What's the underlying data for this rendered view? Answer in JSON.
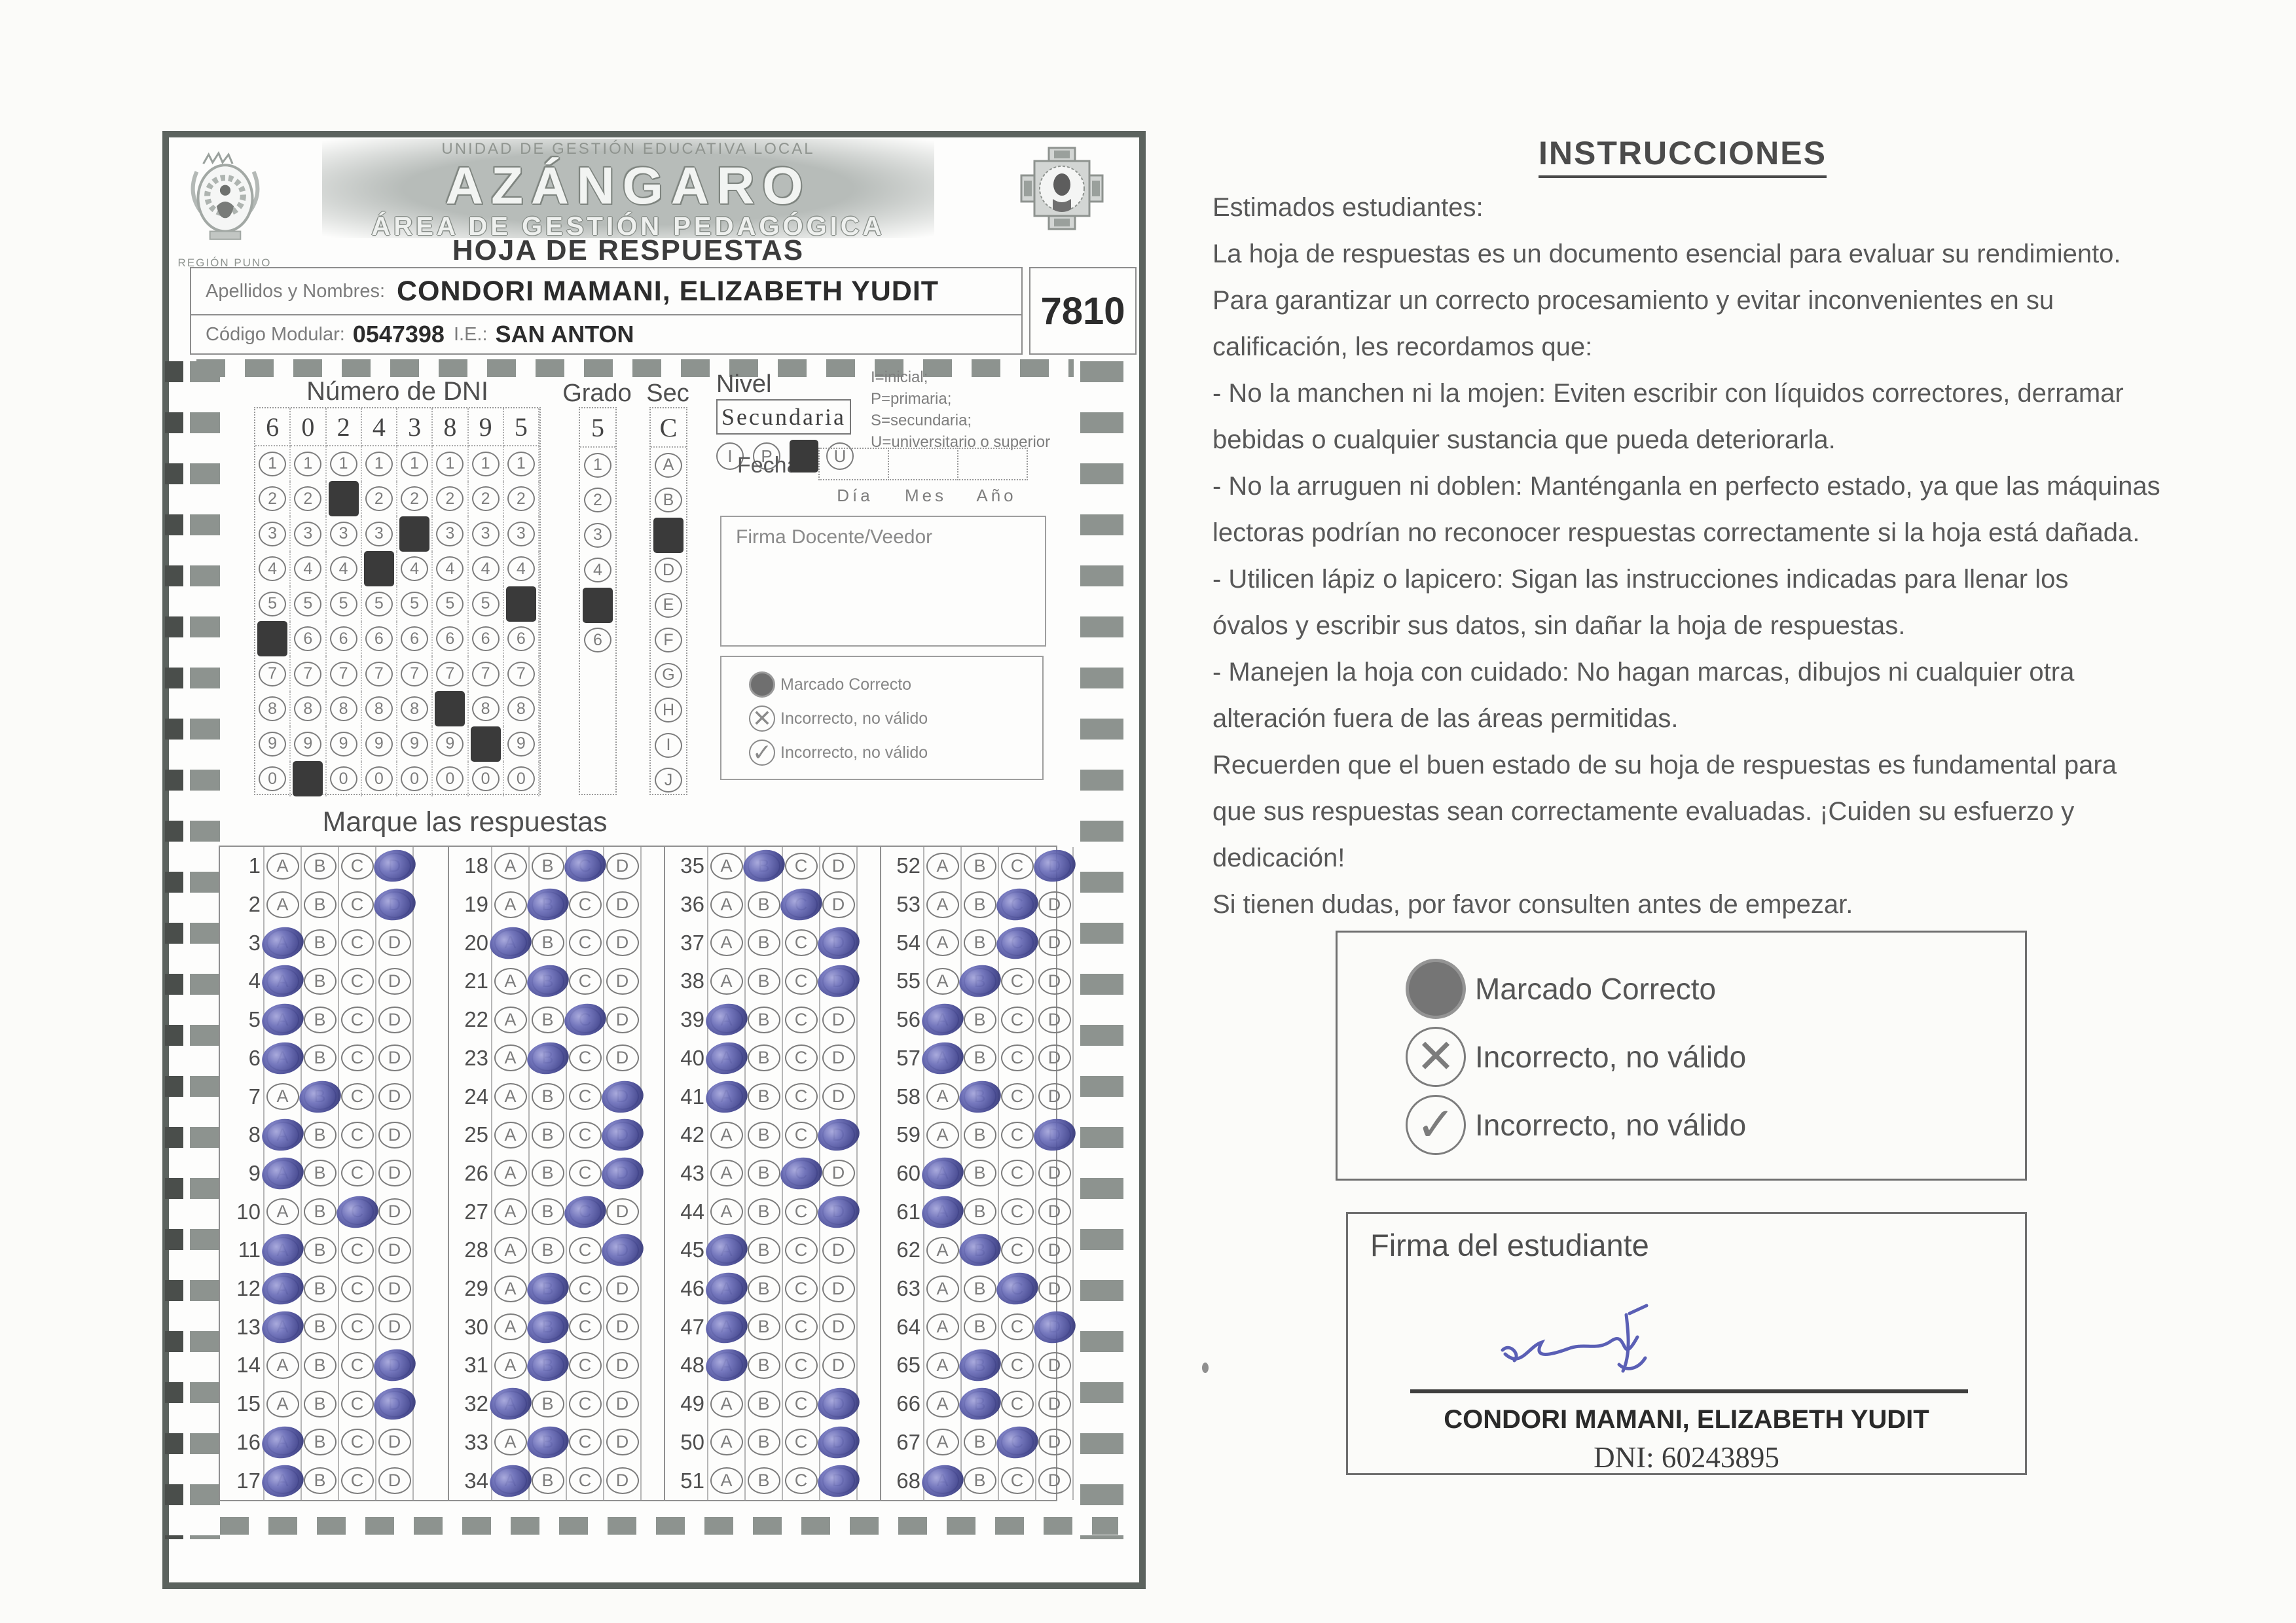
{
  "form": {
    "header": {
      "ugel_line": "UNIDAD DE GESTIÓN EDUCATIVA LOCAL",
      "title": "AZÁNGARO",
      "subtitle": "ÁREA DE GESTIÓN PEDAGÓGICA",
      "region_caption": "REGIÓN PUNO",
      "sheet_title": "HOJA DE RESPUESTAS"
    },
    "student": {
      "names_label": "Apellidos y Nombres:",
      "names_value": "CONDORI MAMANI, ELIZABETH YUDIT",
      "modular_label": "Código Modular:",
      "modular_value": "0547398",
      "ie_label": "I.E.:",
      "ie_value": "SAN ANTON",
      "sheet_code": "7810"
    },
    "dni": {
      "title": "Número de DNI",
      "digits": [
        "6",
        "0",
        "2",
        "4",
        "3",
        "8",
        "9",
        "5"
      ],
      "row_values": [
        "1",
        "2",
        "3",
        "4",
        "5",
        "6",
        "7",
        "8",
        "9",
        "0"
      ]
    },
    "grado": {
      "title": "Grado",
      "value": "5",
      "options": [
        "1",
        "2",
        "3",
        "4",
        "5",
        "6"
      ]
    },
    "sec": {
      "title": "Sec",
      "value": "C",
      "options": [
        "A",
        "B",
        "C",
        "D",
        "E",
        "F",
        "G",
        "H",
        "I",
        "J"
      ]
    },
    "nivel": {
      "title": "Nivel",
      "value": "Secundaria",
      "options": [
        "I",
        "P",
        "S",
        "U"
      ],
      "selected": "S",
      "legend_lines": [
        "I=inicial;",
        "P=primaria;",
        "S=secundaria;",
        "U=universitario o superior"
      ]
    },
    "fecha": {
      "label": "Fecha:",
      "fields": [
        "Día",
        "Mes",
        "Año"
      ]
    },
    "firma_docente_label": "Firma Docente/Veedor",
    "mark_legend": {
      "correct": "Marcado Correcto",
      "incorrect_x": "Incorrecto, no válido",
      "incorrect_check": "Incorrecto, no válido"
    },
    "answers_title": "Marque las respuestas",
    "choices": [
      "A",
      "B",
      "C",
      "D"
    ],
    "answers": [
      "D",
      "D",
      "A",
      "A",
      "A",
      "A",
      "B",
      "A",
      "A",
      "C",
      "A",
      "A",
      "A",
      "D",
      "D",
      "A",
      "A",
      "C",
      "B",
      "A",
      "B",
      "C",
      "B",
      "D",
      "D",
      "D",
      "C",
      "D",
      "B",
      "B",
      "B",
      "A",
      "B",
      "A",
      "B",
      "C",
      "D",
      "D",
      "A",
      "A",
      "A",
      "D",
      "C",
      "D",
      "A",
      "A",
      "A",
      "A",
      "D",
      "D",
      "D",
      "D",
      "C",
      "C",
      "B",
      "A",
      "A",
      "B",
      "D",
      "A",
      "A",
      "B",
      "C",
      "D",
      "B",
      "B",
      "C",
      "A"
    ]
  },
  "instructions": {
    "title": "INSTRUCCIONES",
    "lines": [
      "Estimados estudiantes:",
      "La hoja de respuestas es un documento esencial para evaluar su rendimiento.",
      "Para garantizar un correcto procesamiento y evitar inconvenientes en su",
      "calificación, les recordamos que:",
      "- No la manchen ni la mojen: Eviten escribir con líquidos correctores, derramar",
      "bebidas o cualquier sustancia que pueda deteriorarla.",
      "- No la arruguen ni doblen: Manténganla en perfecto estado, ya que las máquinas",
      "lectoras podrían no reconocer respuestas correctamente si la hoja está dañada.",
      "- Utilicen lápiz o lapicero: Sigan las instrucciones indicadas para llenar los",
      "óvalos y escribir sus datos, sin dañar la hoja de respuestas.",
      "- Manejen la hoja con cuidado: No hagan marcas, dibujos ni cualquier otra",
      "alteración fuera de las áreas permitidas.",
      "Recuerden que el buen estado de su hoja de respuestas es fundamental para",
      "que sus respuestas sean correctamente evaluadas. ¡Cuiden su esfuerzo y",
      "dedicación!",
      "Si tienen dudas, por favor consulten antes de empezar."
    ]
  },
  "legend_box": {
    "correct": "Marcado Correcto",
    "incorrect_x": "Incorrecto, no válido",
    "incorrect_check": "Incorrecto, no válido"
  },
  "signature_box": {
    "title": "Firma del estudiante",
    "name": "CONDORI MAMANI, ELIZABETH YUDIT",
    "dni_label": "DNI:",
    "dni_value": "60243895"
  },
  "icons": {
    "x_glyph": "✕",
    "check_glyph": "✓"
  },
  "colors": {
    "ink_blue": "#4b4e9e",
    "pencil_dark": "#3a3a3a",
    "timing_gray": "#8d938f",
    "border_gray": "#5c635f"
  }
}
